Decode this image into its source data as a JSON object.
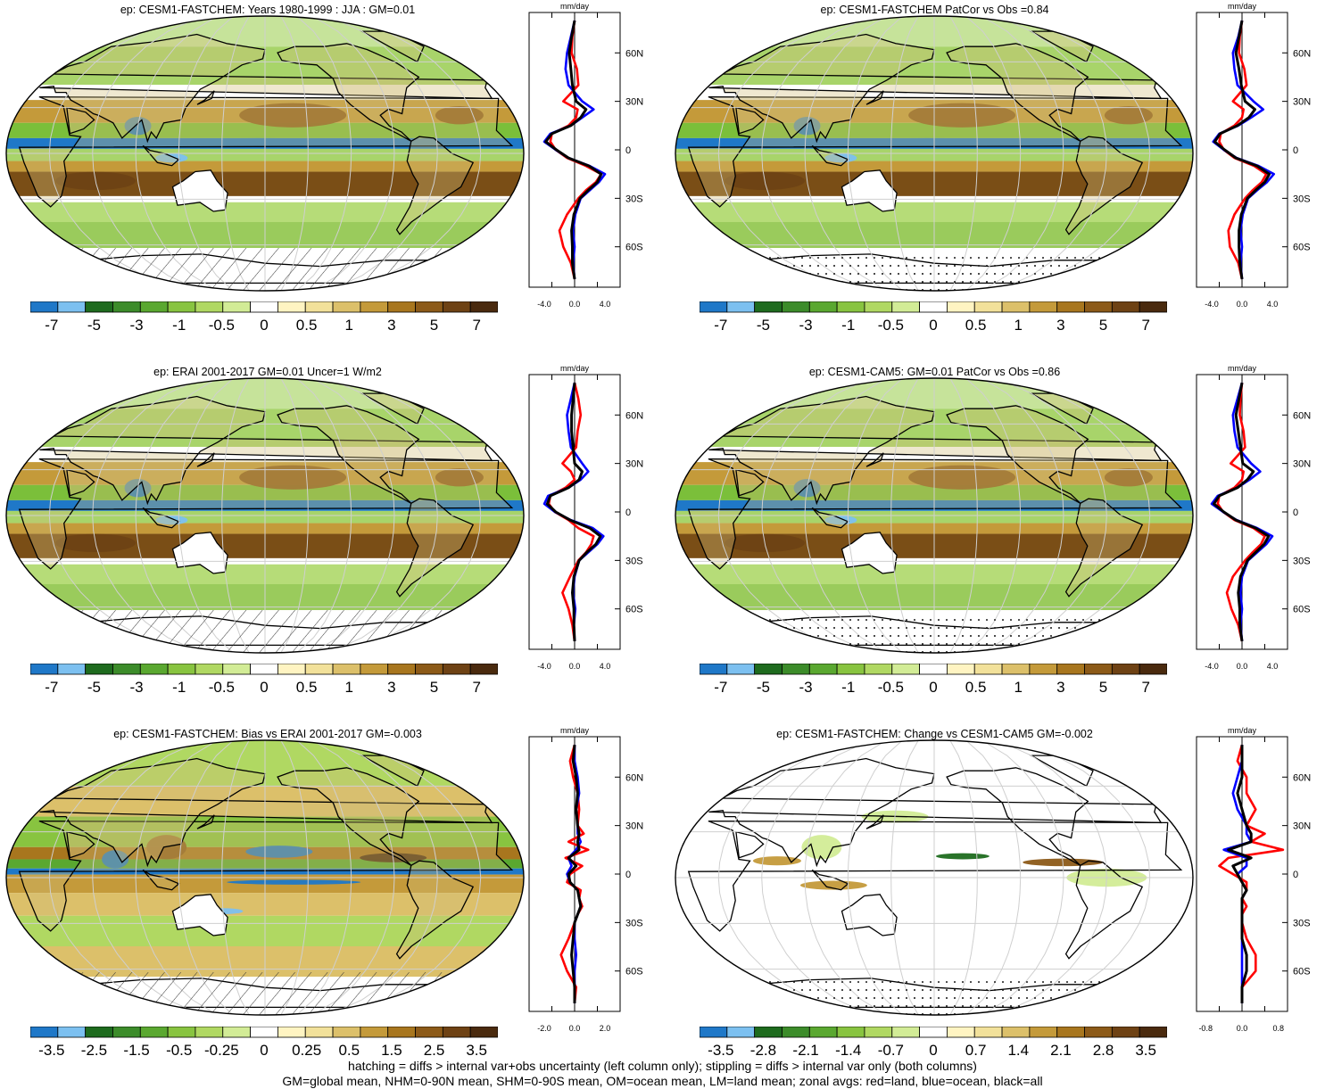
{
  "footer": {
    "line1": "hatching = diffs > internal var+obs uncertainty (left column only); stippling = diffs > internal var only (both columns)",
    "line2": "GM=global mean, NHM=0-90N mean, SHM=0-90S mean, OM=ocean mean, LM=land mean; zonal avgs: red=land, blue=ocean, black=all"
  },
  "colors": {
    "land": "#ff0000",
    "ocean": "#0000ff",
    "all": "#000000"
  },
  "colorbars": {
    "standard": {
      "labels": [
        "-7",
        "-5",
        "-3",
        "-1",
        "-0.5",
        "0",
        "0.5",
        "1",
        "3",
        "5",
        "7"
      ],
      "colors": [
        "#1f78c8",
        "#7cc0f0",
        "#1e6b1e",
        "#3c8c2a",
        "#5aa830",
        "#88c440",
        "#b0d862",
        "#d2ec96",
        "#ffffff",
        "#fff4c2",
        "#f2e19a",
        "#dcc06a",
        "#c49a3a",
        "#a8761e",
        "#8c5a18",
        "#6e4214",
        "#4a2a0e"
      ]
    },
    "bias": {
      "labels": [
        "-3.5",
        "-2.5",
        "-1.5",
        "-0.5",
        "-0.25",
        "0",
        "0.25",
        "0.5",
        "1.5",
        "2.5",
        "3.5"
      ],
      "colors": [
        "#1f78c8",
        "#7cc0f0",
        "#1e6b1e",
        "#3c8c2a",
        "#5aa830",
        "#88c440",
        "#b0d862",
        "#d2ec96",
        "#ffffff",
        "#fff4c2",
        "#f2e19a",
        "#dcc06a",
        "#c49a3a",
        "#a8761e",
        "#8c5a18",
        "#6e4214",
        "#4a2a0e"
      ]
    },
    "change": {
      "labels": [
        "-3.5",
        "-2.8",
        "-2.1",
        "-1.4",
        "-0.7",
        "0",
        "0.7",
        "1.4",
        "2.1",
        "2.8",
        "3.5"
      ],
      "colors": [
        "#1f78c8",
        "#7cc0f0",
        "#1e6b1e",
        "#3c8c2a",
        "#5aa830",
        "#88c440",
        "#b0d862",
        "#d2ec96",
        "#ffffff",
        "#fff4c2",
        "#f2e19a",
        "#dcc06a",
        "#c49a3a",
        "#a8761e",
        "#8c5a18",
        "#6e4214",
        "#4a2a0e"
      ]
    }
  },
  "chart_data": [
    {
      "type": "heatmap",
      "title": "ep: CESM1-FASTCHEM: Years 1980-1999 : JJA : GM=0.01",
      "field": "mean",
      "hatching": "south",
      "colorbar": "standard",
      "profile": {
        "unit": "mm/day",
        "xticks": [
          "-4.0",
          "0.0",
          "4.0"
        ],
        "xlim": [
          -6,
          6
        ],
        "yticks": [
          "60N",
          "30N",
          "0",
          "30S",
          "60S"
        ],
        "ylim": [
          -85,
          85
        ],
        "lat": [
          80,
          70,
          60,
          50,
          40,
          30,
          25,
          20,
          15,
          10,
          5,
          0,
          -5,
          -10,
          -15,
          -20,
          -25,
          -30,
          -40,
          -50,
          -60,
          -70,
          -80
        ],
        "land": [
          0.0,
          -0.3,
          -0.4,
          0.3,
          0.5,
          -1.5,
          0.4,
          0.2,
          -0.8,
          -3.0,
          -3.2,
          -2.5,
          -1.0,
          1.5,
          3.5,
          2.8,
          1.5,
          0.5,
          -1.0,
          -2.0,
          -1.5,
          -0.5,
          0.0
        ],
        "ocean": [
          0.0,
          -0.5,
          -1.0,
          -1.2,
          -0.8,
          1.0,
          2.5,
          1.0,
          -0.5,
          -3.2,
          -4.0,
          -2.5,
          -0.8,
          2.0,
          4.0,
          3.2,
          2.0,
          0.8,
          0.1,
          -0.2,
          0.0,
          -0.2,
          0.0
        ],
        "all": [
          0.0,
          -0.4,
          -0.7,
          -0.5,
          -0.3,
          0.2,
          1.5,
          0.8,
          -0.5,
          -3.0,
          -3.8,
          -2.4,
          -0.8,
          1.9,
          3.5,
          3.0,
          1.8,
          0.7,
          -0.1,
          -0.4,
          -0.3,
          -0.3,
          0.0
        ]
      }
    },
    {
      "type": "heatmap",
      "title": "ep: CESM1-FASTCHEM PatCor vs Obs =0.84",
      "field": "mean",
      "hatching": "none",
      "colorbar": "standard",
      "profile": {
        "unit": "mm/day",
        "xticks": [
          "-4.0",
          "0.0",
          "4.0"
        ],
        "xlim": [
          -6,
          6
        ],
        "yticks": [
          "60N",
          "30N",
          "0",
          "30S",
          "60S"
        ],
        "ylim": [
          -85,
          85
        ],
        "lat": [
          80,
          70,
          60,
          50,
          40,
          30,
          25,
          20,
          15,
          10,
          5,
          0,
          -5,
          -10,
          -15,
          -20,
          -25,
          -30,
          -40,
          -50,
          -60,
          -70,
          -80
        ],
        "land": [
          0.0,
          -0.3,
          -0.4,
          0.3,
          0.6,
          -1.2,
          0.2,
          0.0,
          -1.0,
          -2.8,
          -3.0,
          -2.4,
          -1.0,
          1.6,
          3.2,
          2.6,
          1.4,
          0.4,
          -1.0,
          -1.8,
          -1.6,
          -0.5,
          0.0
        ],
        "ocean": [
          0.0,
          -0.5,
          -1.2,
          -1.0,
          -0.6,
          1.5,
          2.8,
          1.2,
          -0.5,
          -3.0,
          -3.8,
          -2.4,
          -0.7,
          2.2,
          4.2,
          3.3,
          2.0,
          0.8,
          0.1,
          -0.2,
          0.0,
          -0.2,
          0.0
        ],
        "all": [
          0.0,
          -0.4,
          -0.8,
          -0.4,
          -0.1,
          0.4,
          1.7,
          0.9,
          -0.6,
          -2.9,
          -3.6,
          -2.3,
          -0.8,
          2.0,
          3.6,
          3.0,
          1.8,
          0.7,
          -0.1,
          -0.4,
          -0.4,
          -0.3,
          0.0
        ]
      }
    },
    {
      "type": "heatmap",
      "title": "ep: ERAI 2001-2017 GM=0.01 Uncer=1 W/m2",
      "field": "mean",
      "hatching": "south",
      "colorbar": "standard",
      "profile": {
        "unit": "mm/day",
        "xticks": [
          "-4.0",
          "0.0",
          "4.0"
        ],
        "xlim": [
          -6,
          6
        ],
        "yticks": [
          "60N",
          "30N",
          "0",
          "30S",
          "60S"
        ],
        "ylim": [
          -85,
          85
        ],
        "lat": [
          80,
          70,
          60,
          50,
          40,
          30,
          25,
          20,
          15,
          10,
          5,
          0,
          -5,
          -10,
          -15,
          -20,
          -25,
          -30,
          -40,
          -50,
          -60,
          -70,
          -80
        ],
        "land": [
          0.0,
          0.5,
          0.8,
          0.4,
          0.2,
          -1.6,
          -0.5,
          0.0,
          -1.2,
          -3.2,
          -3.4,
          -2.6,
          -0.8,
          0.5,
          2.5,
          2.2,
          1.5,
          0.5,
          -0.6,
          -1.6,
          -0.8,
          -0.3,
          0.0
        ],
        "ocean": [
          0.0,
          -0.5,
          -1.0,
          -0.8,
          -0.5,
          1.0,
          1.8,
          0.8,
          -0.8,
          -3.5,
          -4.0,
          -2.6,
          -0.5,
          2.4,
          3.8,
          3.0,
          1.8,
          0.6,
          0.0,
          -0.2,
          0.1,
          -0.1,
          0.0
        ],
        "all": [
          0.0,
          -0.2,
          -0.4,
          -0.4,
          -0.2,
          0.0,
          1.0,
          0.6,
          -0.8,
          -3.2,
          -3.6,
          -2.5,
          -0.6,
          2.0,
          3.4,
          2.8,
          1.6,
          0.6,
          -0.1,
          -0.3,
          -0.1,
          -0.1,
          0.0
        ]
      }
    },
    {
      "type": "heatmap",
      "title": "ep: CESM1-CAM5: GM=0.01 PatCor vs Obs =0.86",
      "field": "mean",
      "hatching": "none",
      "colorbar": "standard",
      "profile": {
        "unit": "mm/day",
        "xticks": [
          "-4.0",
          "0.0",
          "4.0"
        ],
        "xlim": [
          -6,
          6
        ],
        "yticks": [
          "60N",
          "30N",
          "0",
          "30S",
          "60S"
        ],
        "ylim": [
          -85,
          85
        ],
        "lat": [
          80,
          70,
          60,
          50,
          40,
          30,
          25,
          20,
          15,
          10,
          5,
          0,
          -5,
          -10,
          -15,
          -20,
          -25,
          -30,
          -40,
          -50,
          -60,
          -70,
          -80
        ],
        "land": [
          0.0,
          -0.2,
          -0.3,
          0.2,
          0.4,
          -1.5,
          0.2,
          0.0,
          -1.0,
          -3.0,
          -3.2,
          -2.5,
          -1.0,
          1.5,
          3.0,
          2.5,
          1.4,
          0.4,
          -1.2,
          -2.0,
          -1.4,
          -0.5,
          0.0
        ],
        "ocean": [
          0.0,
          -0.6,
          -1.2,
          -1.0,
          -0.6,
          1.2,
          2.4,
          1.0,
          -0.6,
          -3.2,
          -4.0,
          -2.5,
          -0.7,
          2.0,
          4.0,
          3.2,
          2.0,
          0.8,
          0.0,
          -0.2,
          0.0,
          -0.2,
          0.0
        ],
        "all": [
          0.0,
          -0.4,
          -0.8,
          -0.5,
          -0.2,
          0.1,
          1.5,
          0.7,
          -0.6,
          -3.0,
          -3.7,
          -2.4,
          -0.8,
          1.8,
          3.5,
          2.9,
          1.8,
          0.7,
          -0.2,
          -0.5,
          -0.3,
          -0.3,
          0.0
        ]
      }
    },
    {
      "type": "heatmap",
      "title": "ep: CESM1-FASTCHEM: Bias vs ERAI 2001-2017 GM=-0.003",
      "field": "bias",
      "hatching": "south",
      "colorbar": "bias",
      "profile": {
        "unit": "mm/day",
        "xticks": [
          "-2.0",
          "0.0",
          "2.0"
        ],
        "xlim": [
          -3,
          3
        ],
        "yticks": [
          "60N",
          "30N",
          "0",
          "30S",
          "60S"
        ],
        "ylim": [
          -85,
          85
        ],
        "lat": [
          80,
          70,
          60,
          50,
          40,
          30,
          25,
          20,
          15,
          10,
          5,
          0,
          -5,
          -10,
          -15,
          -20,
          -25,
          -30,
          -40,
          -50,
          -60,
          -70,
          -80
        ],
        "land": [
          0.0,
          -0.3,
          -0.1,
          0.2,
          0.3,
          0.2,
          0.6,
          -0.4,
          0.9,
          -0.6,
          0.5,
          -0.3,
          -0.5,
          0.4,
          0.3,
          0.5,
          0.2,
          0.0,
          -0.4,
          -0.9,
          -0.5,
          0.1,
          0.0
        ],
        "ocean": [
          0.0,
          0.0,
          0.2,
          0.3,
          0.1,
          0.2,
          0.2,
          0.4,
          0.1,
          -0.4,
          -0.2,
          -0.5,
          -0.3,
          0.2,
          0.3,
          0.4,
          0.2,
          0.0,
          0.0,
          0.1,
          0.0,
          0.0,
          0.0
        ],
        "all": [
          0.0,
          -0.1,
          0.1,
          0.2,
          0.1,
          0.2,
          0.3,
          0.2,
          0.3,
          -0.4,
          0.1,
          -0.4,
          -0.3,
          0.2,
          0.3,
          0.4,
          0.2,
          0.0,
          -0.1,
          -0.2,
          -0.1,
          0.0,
          0.0
        ]
      }
    },
    {
      "type": "heatmap",
      "title": "ep: CESM1-FASTCHEM: Change vs CESM1-CAM5 GM=-0.002",
      "field": "change",
      "hatching": "none",
      "colorbar": "change",
      "profile": {
        "unit": "mm/day",
        "xticks": [
          "-0.8",
          "0.0",
          "0.8"
        ],
        "xlim": [
          -1,
          1
        ],
        "yticks": [
          "60N",
          "30N",
          "0",
          "30S",
          "60S"
        ],
        "ylim": [
          -85,
          85
        ],
        "lat": [
          80,
          70,
          60,
          50,
          40,
          30,
          25,
          20,
          15,
          10,
          5,
          0,
          -5,
          -10,
          -15,
          -20,
          -25,
          -30,
          -40,
          -50,
          -60,
          -70,
          -80
        ],
        "land": [
          0.0,
          -0.1,
          0.1,
          0.1,
          0.3,
          0.1,
          0.5,
          0.2,
          0.9,
          -0.3,
          -0.5,
          -0.2,
          0.1,
          0.1,
          0.0,
          0.1,
          0.0,
          0.0,
          0.1,
          0.3,
          0.3,
          0.0,
          0.0
        ],
        "ocean": [
          0.0,
          0.0,
          -0.1,
          -0.2,
          -0.1,
          0.1,
          0.1,
          0.2,
          -0.4,
          0.1,
          0.1,
          -0.1,
          0.0,
          0.1,
          0.0,
          0.0,
          0.0,
          0.0,
          0.0,
          0.0,
          0.0,
          0.0,
          0.0
        ],
        "all": [
          0.0,
          0.0,
          0.0,
          -0.1,
          0.0,
          0.1,
          0.2,
          0.2,
          -0.3,
          0.2,
          -0.2,
          -0.1,
          0.0,
          0.1,
          0.0,
          0.0,
          0.0,
          0.0,
          0.0,
          0.1,
          0.1,
          0.0,
          0.0
        ]
      }
    }
  ]
}
